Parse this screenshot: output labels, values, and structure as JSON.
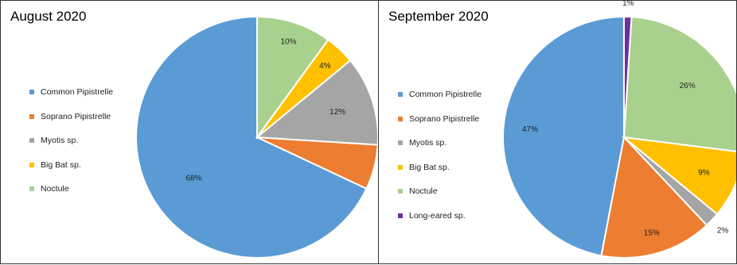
{
  "chart_data": [
    {
      "type": "pie",
      "title": "August 2020",
      "legend_position": "left",
      "series": [
        {
          "name": "Common Pipistrelle",
          "value": 68,
          "label": "68%",
          "color": "#5b9bd5"
        },
        {
          "name": "Soprano Pipistrelle",
          "value": 6,
          "label": "6%",
          "color": "#ed7d31"
        },
        {
          "name": "Myotis sp.",
          "value": 12,
          "label": "12%",
          "color": "#a5a5a5"
        },
        {
          "name": "Big Bat sp.",
          "value": 4,
          "label": "4%",
          "color": "#ffc000"
        },
        {
          "name": "Noctule",
          "value": 10,
          "label": "10%",
          "color": "#a9d18e"
        }
      ]
    },
    {
      "type": "pie",
      "title": "September 2020",
      "legend_position": "left",
      "series": [
        {
          "name": "Common Pipistrelle",
          "value": 47,
          "label": "47%",
          "color": "#5b9bd5"
        },
        {
          "name": "Soprano Pipistrelle",
          "value": 15,
          "label": "15%",
          "color": "#ed7d31"
        },
        {
          "name": "Myotis sp.",
          "value": 2,
          "label": "2%",
          "color": "#a5a5a5"
        },
        {
          "name": "Big Bat sp.",
          "value": 9,
          "label": "9%",
          "color": "#ffc000"
        },
        {
          "name": "Noctule",
          "value": 26,
          "label": "26%",
          "color": "#a9d18e"
        },
        {
          "name": "Long-eared sp.",
          "value": 1,
          "label": "1%",
          "color": "#7030a0"
        }
      ]
    }
  ]
}
